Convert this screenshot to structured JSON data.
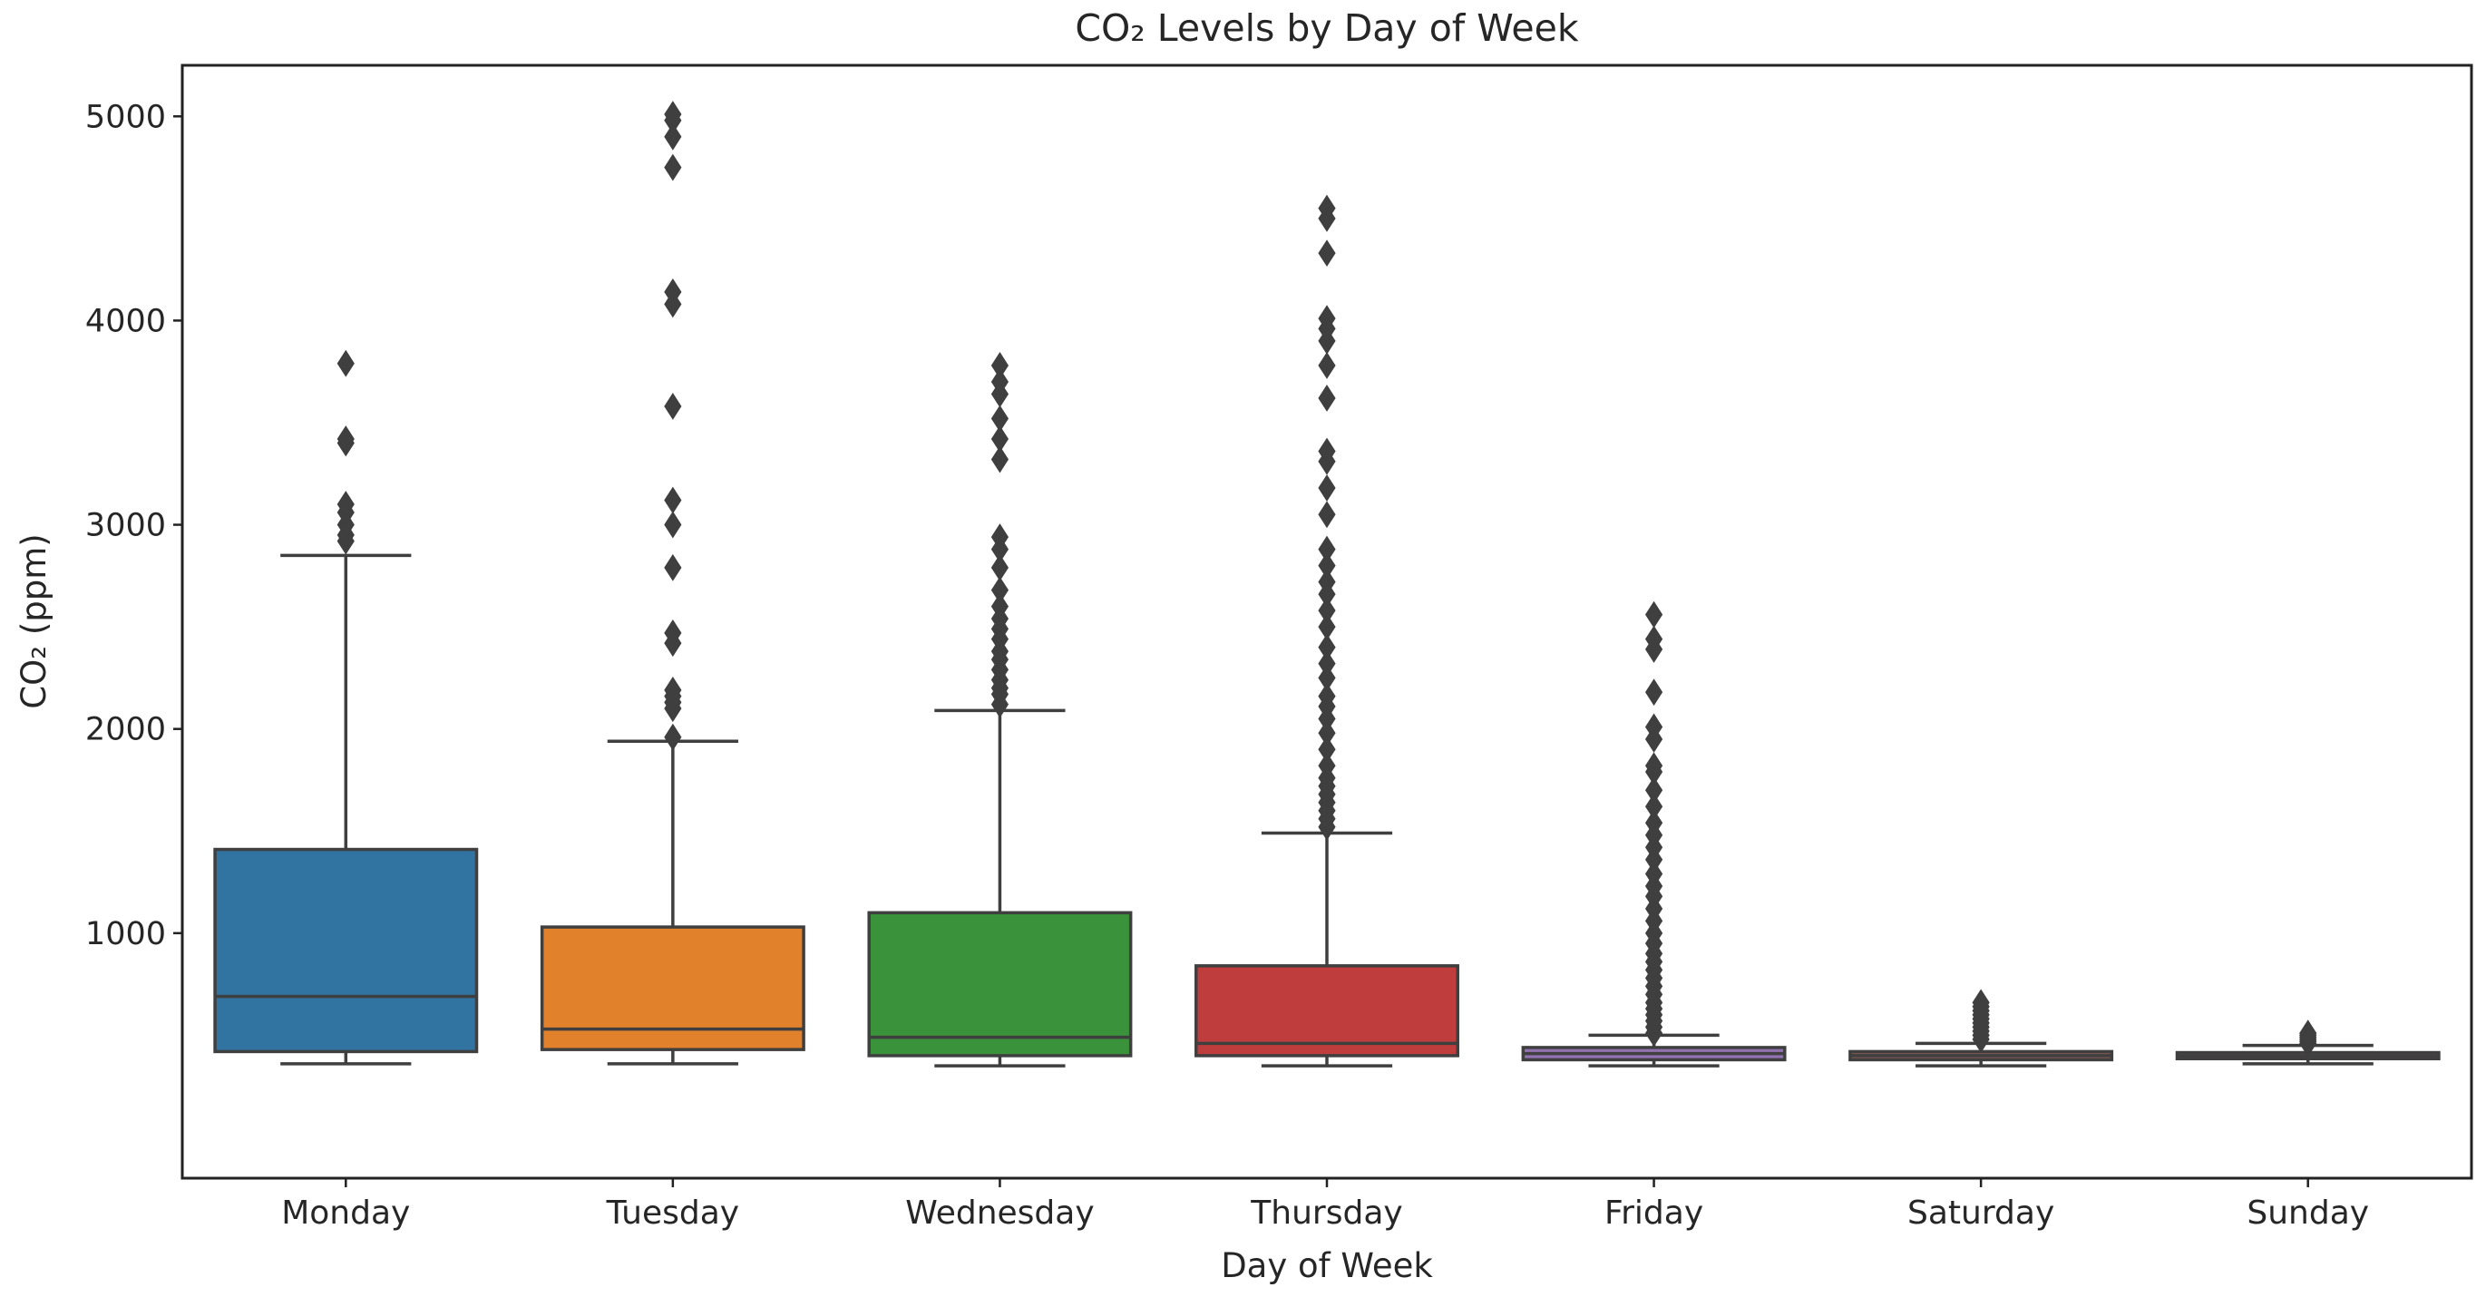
{
  "chart_data": {
    "type": "box",
    "title": "CO₂ Levels by Day of Week",
    "xlabel": "Day of Week",
    "ylabel": "CO₂ (ppm)",
    "ylim": [
      -200,
      5250
    ],
    "yticks": [
      1000,
      2000,
      3000,
      4000,
      5000
    ],
    "categories": [
      "Monday",
      "Tuesday",
      "Wednesday",
      "Thursday",
      "Friday",
      "Saturday",
      "Sunday"
    ],
    "colors": [
      "#3274a1",
      "#e1812c",
      "#3a923a",
      "#c03d3e",
      "#9372b2",
      "#845b53",
      "#d684bd"
    ],
    "edge_color": "#3f3f3f",
    "boxes": [
      {
        "name": "Monday",
        "whisker_low": 360,
        "q1": 420,
        "median": 690,
        "q3": 1410,
        "whisker_high": 2850,
        "outliers": [
          2920,
          2950,
          3000,
          3060,
          3100,
          3400,
          3420,
          3790
        ]
      },
      {
        "name": "Tuesday",
        "whisker_low": 360,
        "q1": 430,
        "median": 530,
        "q3": 1030,
        "whisker_high": 1940,
        "outliers": [
          1960,
          2100,
          2130,
          2160,
          2190,
          2420,
          2470,
          2790,
          3000,
          3120,
          3580,
          4080,
          4140,
          4750,
          4900,
          4980,
          5010
        ]
      },
      {
        "name": "Wednesday",
        "whisker_low": 350,
        "q1": 400,
        "median": 490,
        "q3": 1100,
        "whisker_high": 2090,
        "outliers": [
          2120,
          2170,
          2200,
          2240,
          2290,
          2340,
          2380,
          2440,
          2490,
          2540,
          2600,
          2680,
          2790,
          2880,
          2940,
          3320,
          3420,
          3520,
          3640,
          3700,
          3780
        ]
      },
      {
        "name": "Thursday",
        "whisker_low": 350,
        "q1": 400,
        "median": 460,
        "q3": 840,
        "whisker_high": 1490,
        "outliers": [
          1520,
          1560,
          1600,
          1640,
          1680,
          1720,
          1760,
          1820,
          1900,
          1980,
          2050,
          2110,
          2160,
          2250,
          2320,
          2400,
          2500,
          2580,
          2660,
          2720,
          2800,
          2880,
          3050,
          3180,
          3310,
          3360,
          3620,
          3780,
          3900,
          3960,
          4010,
          4330,
          4500,
          4550
        ]
      },
      {
        "name": "Friday",
        "whisker_low": 350,
        "q1": 380,
        "median": 410,
        "q3": 440,
        "whisker_high": 500,
        "outliers": [
          510,
          540,
          570,
          600,
          630,
          660,
          700,
          740,
          780,
          820,
          860,
          900,
          950,
          1000,
          1060,
          1120,
          1180,
          1230,
          1290,
          1360,
          1420,
          1480,
          1540,
          1620,
          1700,
          1790,
          1820,
          1950,
          2010,
          2180,
          2390,
          2440,
          2560
        ]
      },
      {
        "name": "Saturday",
        "whisker_low": 350,
        "q1": 380,
        "median": 400,
        "q3": 420,
        "whisker_high": 460,
        "outliers": [
          480,
          500,
          520,
          540,
          560,
          580,
          600,
          620,
          640,
          660
        ]
      },
      {
        "name": "Sunday",
        "whisker_low": 360,
        "q1": 385,
        "median": 400,
        "q3": 415,
        "whisker_high": 450,
        "outliers": [
          460,
          470,
          480,
          490,
          500,
          510
        ]
      }
    ]
  }
}
